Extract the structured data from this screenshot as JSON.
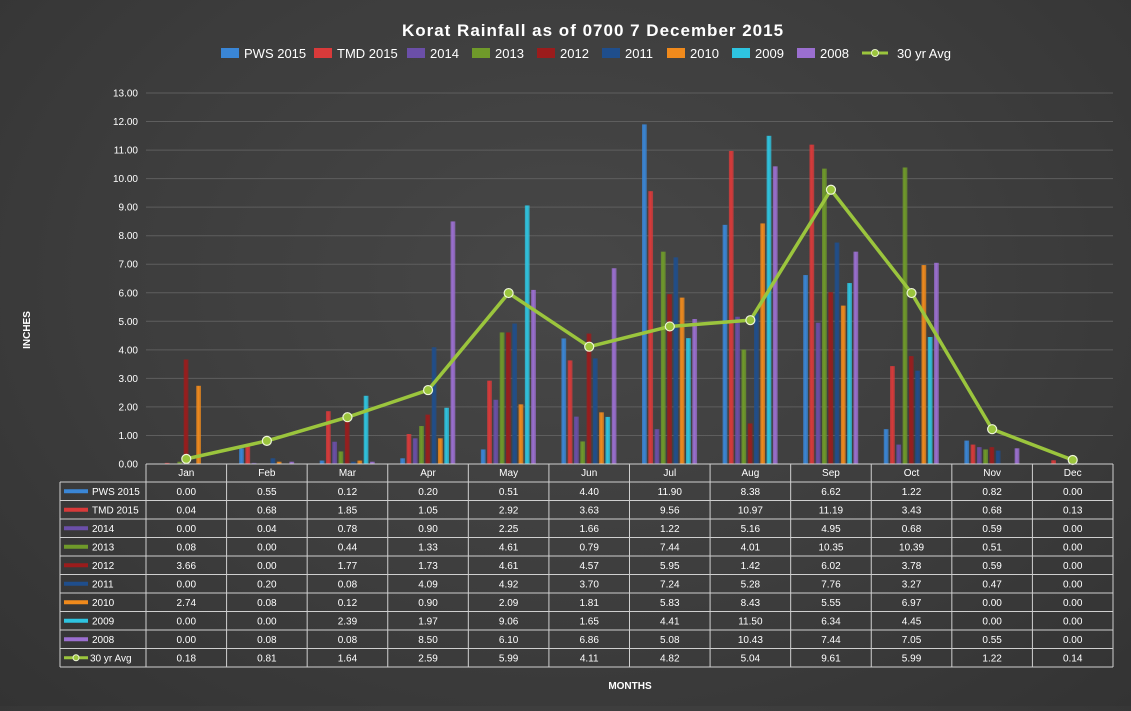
{
  "chart_data": {
    "type": "bar",
    "title": "Korat Rainfall as of 0700 7 December 2015",
    "xlabel": "MONTHS",
    "ylabel": "INCHES",
    "ylim": [
      0,
      13
    ],
    "yticks": [
      "0.00",
      "1.00",
      "2.00",
      "3.00",
      "4.00",
      "5.00",
      "6.00",
      "7.00",
      "8.00",
      "9.00",
      "10.00",
      "11.00",
      "12.00",
      "13.00"
    ],
    "grid": true,
    "legend_position": "top",
    "categories": [
      "Jan",
      "Feb",
      "Mar",
      "Apr",
      "May",
      "Jun",
      "Jul",
      "Aug",
      "Sep",
      "Oct",
      "Nov",
      "Dec"
    ],
    "series": [
      {
        "name": "PWS 2015",
        "color": "#3a86d6",
        "values": [
          0.0,
          0.55,
          0.12,
          0.2,
          0.51,
          4.4,
          11.9,
          8.38,
          6.62,
          1.22,
          0.82,
          0.0
        ],
        "labels": [
          "0.00",
          "0.55",
          "0.12",
          "0.20",
          "0.51",
          "4.40",
          "11.90",
          "8.38",
          "6.62",
          "1.22",
          "0.82",
          "0.00"
        ]
      },
      {
        "name": "TMD 2015",
        "color": "#d93a3a",
        "values": [
          0.04,
          0.68,
          1.85,
          1.05,
          2.92,
          3.63,
          9.56,
          10.97,
          11.19,
          3.43,
          0.68,
          0.13
        ],
        "labels": [
          "0.04",
          "0.68",
          "1.85",
          "1.05",
          "2.92",
          "3.63",
          "9.56",
          "10.97",
          "11.19",
          "3.43",
          "0.68",
          "0.13"
        ]
      },
      {
        "name": "2014",
        "color": "#6b4fa8",
        "values": [
          0.0,
          0.04,
          0.78,
          0.9,
          2.25,
          1.66,
          1.22,
          5.16,
          4.95,
          0.68,
          0.59,
          0.0
        ],
        "labels": [
          "0.00",
          "0.04",
          "0.78",
          "0.90",
          "2.25",
          "1.66",
          "1.22",
          "5.16",
          "4.95",
          "0.68",
          "0.59",
          "0.00"
        ]
      },
      {
        "name": "2013",
        "color": "#6f9a2a",
        "values": [
          0.08,
          0.0,
          0.44,
          1.33,
          4.61,
          0.79,
          7.44,
          4.01,
          10.35,
          10.39,
          0.51,
          0.0
        ],
        "labels": [
          "0.08",
          "0.00",
          "0.44",
          "1.33",
          "4.61",
          "0.79",
          "7.44",
          "4.01",
          "10.35",
          "10.39",
          "0.51",
          "0.00"
        ]
      },
      {
        "name": "2012",
        "color": "#9b1c1c",
        "values": [
          3.66,
          0.0,
          1.77,
          1.73,
          4.61,
          4.57,
          5.95,
          1.42,
          6.02,
          3.78,
          0.59,
          0.0
        ],
        "labels": [
          "3.66",
          "0.00",
          "1.77",
          "1.73",
          "4.61",
          "4.57",
          "5.95",
          "1.42",
          "6.02",
          "3.78",
          "0.59",
          "0.00"
        ]
      },
      {
        "name": "2011",
        "color": "#1f4e8c",
        "values": [
          0.0,
          0.2,
          0.08,
          4.09,
          4.92,
          3.7,
          7.24,
          5.28,
          7.76,
          3.27,
          0.47,
          0.0
        ],
        "labels": [
          "0.00",
          "0.20",
          "0.08",
          "4.09",
          "4.92",
          "3.70",
          "7.24",
          "5.28",
          "7.76",
          "3.27",
          "0.47",
          "0.00"
        ]
      },
      {
        "name": "2010",
        "color": "#f08a1c",
        "values": [
          2.74,
          0.08,
          0.12,
          0.9,
          2.09,
          1.81,
          5.83,
          8.43,
          5.55,
          6.97,
          0.0,
          0.0
        ],
        "labels": [
          "2.74",
          "0.08",
          "0.12",
          "0.90",
          "2.09",
          "1.81",
          "5.83",
          "8.43",
          "5.55",
          "6.97",
          "0.00",
          "0.00"
        ]
      },
      {
        "name": "2009",
        "color": "#2ec4e0",
        "values": [
          0.0,
          0.0,
          2.39,
          1.97,
          9.06,
          1.65,
          4.41,
          11.5,
          6.34,
          4.45,
          0.0,
          0.0
        ],
        "labels": [
          "0.00",
          "0.00",
          "2.39",
          "1.97",
          "9.06",
          "1.65",
          "4.41",
          "11.50",
          "6.34",
          "4.45",
          "0.00",
          "0.00"
        ]
      },
      {
        "name": "2008",
        "color": "#9b6fd0",
        "values": [
          0.0,
          0.08,
          0.08,
          8.5,
          6.1,
          6.86,
          5.08,
          10.43,
          7.44,
          7.05,
          0.55,
          0.0
        ],
        "labels": [
          "0.00",
          "0.08",
          "0.08",
          "8.50",
          "6.10",
          "6.86",
          "5.08",
          "10.43",
          "7.44",
          "7.05",
          "0.55",
          "0.00"
        ]
      },
      {
        "name": "30 yr Avg",
        "type": "line",
        "color": "#9bc53d",
        "values": [
          0.18,
          0.81,
          1.64,
          2.59,
          5.99,
          4.11,
          4.82,
          5.04,
          9.61,
          5.99,
          1.22,
          0.14
        ],
        "labels": [
          "0.18",
          "0.81",
          "1.64",
          "2.59",
          "5.99",
          "4.11",
          "4.82",
          "5.04",
          "9.61",
          "5.99",
          "1.22",
          "0.14"
        ]
      }
    ]
  }
}
